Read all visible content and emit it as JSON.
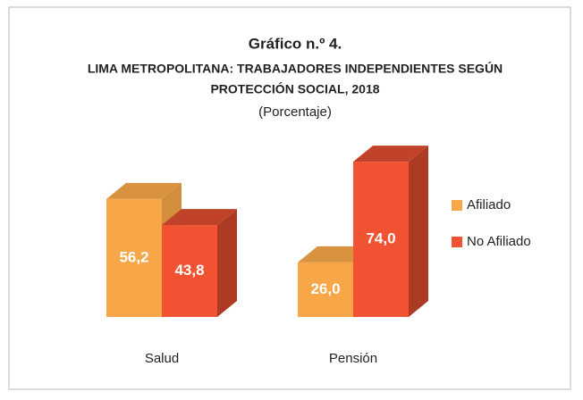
{
  "chart_data": {
    "type": "bar3d",
    "title": "Gráfico n.º 4.",
    "subtitle": [
      "LIMA METROPOLITANA: TRABAJADORES INDEPENDIENTES SEGÚN",
      "PROTECCIÓN SOCIAL, 2018"
    ],
    "ylabel": "(Porcentaje)",
    "categories": [
      "Salud",
      "Pensión"
    ],
    "series": [
      {
        "name": "Afiliado",
        "color": "#f7a648",
        "values": [
          56.2,
          26.0
        ],
        "value_labels": [
          "56,2",
          "26,0"
        ]
      },
      {
        "name": "No Afiliado",
        "color": "#f05232",
        "values": [
          43.8,
          74.0
        ],
        "value_labels": [
          "43,8",
          "74,0"
        ]
      }
    ],
    "ylim": [
      0,
      100
    ],
    "legend": "right"
  }
}
